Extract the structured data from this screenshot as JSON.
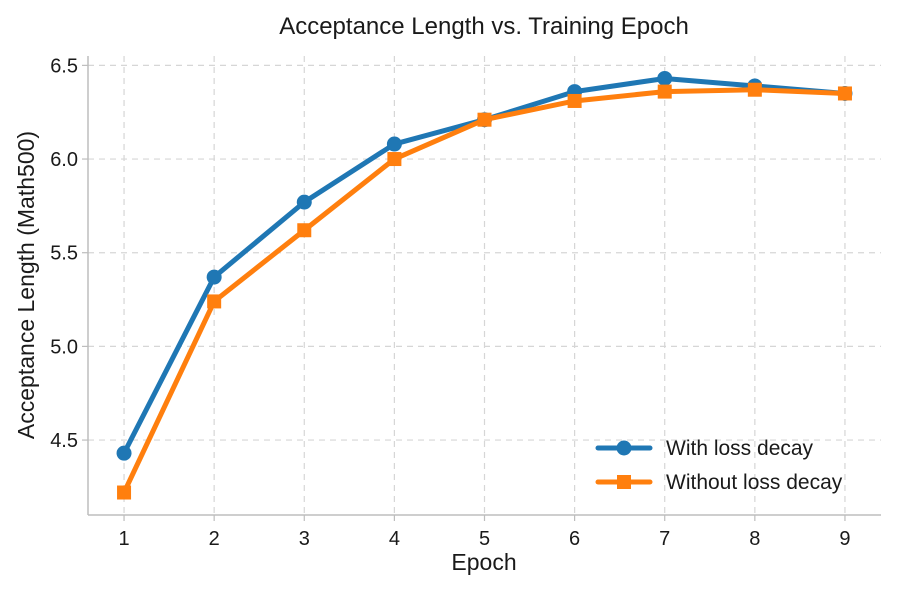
{
  "chart_data": {
    "type": "line",
    "title": "Acceptance Length vs. Training Epoch",
    "xlabel": "Epoch",
    "ylabel": "Acceptance Length (Math500)",
    "x": [
      1,
      2,
      3,
      4,
      5,
      6,
      7,
      8,
      9
    ],
    "xlim": [
      0.6,
      9.4
    ],
    "ylim": [
      4.1,
      6.55
    ],
    "yticks": [
      4.5,
      5.0,
      5.5,
      6.0,
      6.5
    ],
    "ytick_labels": [
      "4.5",
      "5.0",
      "5.5",
      "6.0",
      "6.5"
    ],
    "grid": true,
    "legend_position": "bottom-right",
    "series": [
      {
        "name": "With loss decay",
        "marker": "circle",
        "color": "#1f77b4",
        "values": [
          4.43,
          5.37,
          5.77,
          6.08,
          6.21,
          6.36,
          6.43,
          6.39,
          6.35
        ]
      },
      {
        "name": "Without loss decay",
        "marker": "square",
        "color": "#ff7f0e",
        "values": [
          4.22,
          5.24,
          5.62,
          6.0,
          6.21,
          6.31,
          6.36,
          6.37,
          6.35
        ]
      }
    ]
  }
}
